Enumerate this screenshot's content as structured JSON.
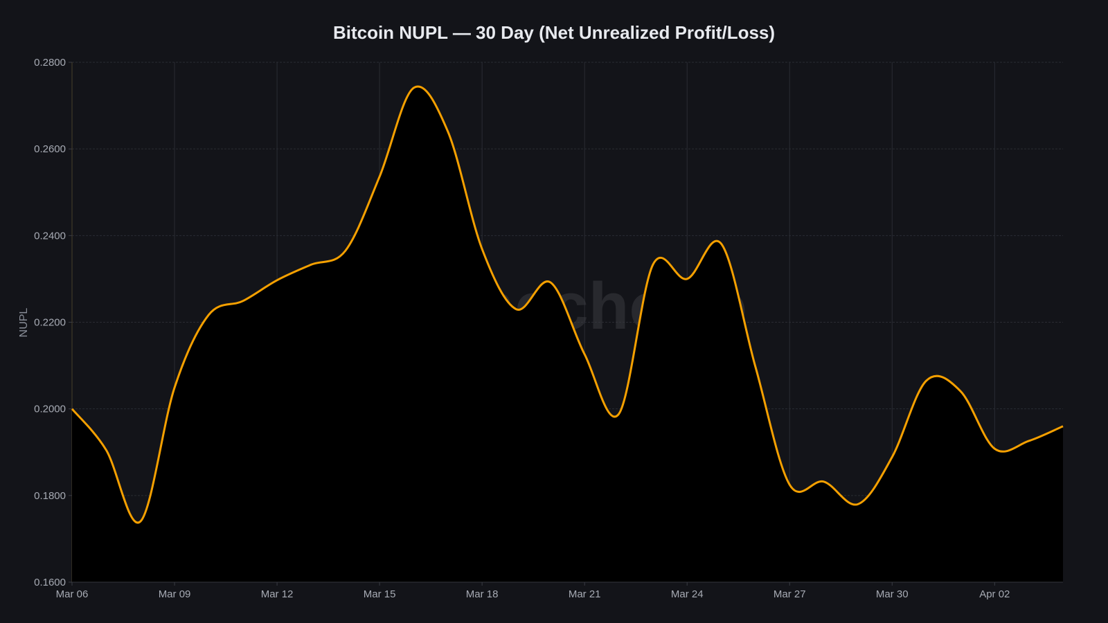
{
  "chart_data": {
    "type": "area",
    "title": "Bitcoin NUPL — 30 Day (Net Unrealized Profit/Loss)",
    "xlabel": "",
    "ylabel": "NUPL",
    "ylim": [
      0.16,
      0.28
    ],
    "yticks": [
      "0.1600",
      "0.1800",
      "0.2000",
      "0.2200",
      "0.2400",
      "0.2600",
      "0.2800"
    ],
    "xticks": [
      "Mar 06",
      "Mar 09",
      "Mar 12",
      "Mar 15",
      "Mar 18",
      "Mar 21",
      "Mar 24",
      "Mar 27",
      "Mar 30",
      "Apr 02"
    ],
    "grid": true,
    "legend": "none",
    "watermark": "tokenecho.io",
    "colors": {
      "line": "#f5a000",
      "fill": "#000000",
      "background": "#131419",
      "grid": "#2a2c33"
    },
    "x": [
      "Mar 06",
      "Mar 07",
      "Mar 08",
      "Mar 09",
      "Mar 10",
      "Mar 11",
      "Mar 12",
      "Mar 13",
      "Mar 14",
      "Mar 15",
      "Mar 16",
      "Mar 17",
      "Mar 18",
      "Mar 19",
      "Mar 20",
      "Mar 21",
      "Mar 22",
      "Mar 23",
      "Mar 24",
      "Mar 25",
      "Mar 26",
      "Mar 27",
      "Mar 28",
      "Mar 29",
      "Mar 30",
      "Mar 31",
      "Apr 01",
      "Apr 02",
      "Apr 03",
      "Apr 04"
    ],
    "series": [
      {
        "name": "NUPL",
        "values": [
          0.2,
          0.1905,
          0.174,
          0.2049,
          0.2217,
          0.2249,
          0.2297,
          0.2333,
          0.2365,
          0.2536,
          0.2741,
          0.264,
          0.2369,
          0.223,
          0.2292,
          0.2126,
          0.1988,
          0.2333,
          0.23,
          0.2381,
          0.2097,
          0.1825,
          0.1832,
          0.178,
          0.1889,
          0.2065,
          0.2041,
          0.1908,
          0.1926,
          0.196
        ]
      }
    ]
  }
}
